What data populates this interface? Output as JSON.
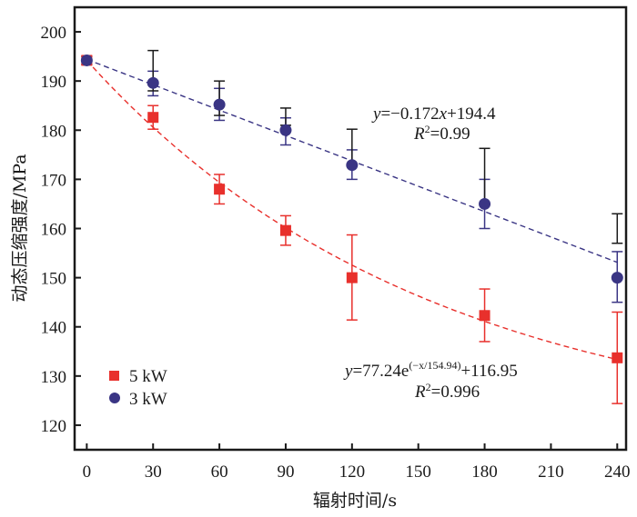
{
  "chart_data": {
    "type": "scatter",
    "title": "",
    "xlabel": "辐射时间/s",
    "ylabel": "动态压缩强度/MPa",
    "xlim": [
      -5.5,
      244
    ],
    "ylim": [
      115,
      205
    ],
    "xticks": [
      0,
      30,
      60,
      90,
      120,
      150,
      180,
      210,
      240
    ],
    "yticks": [
      120,
      130,
      140,
      150,
      160,
      170,
      180,
      190,
      200
    ],
    "grid": false,
    "legend": {
      "placement": "bottom-left",
      "entries": [
        "5 kW",
        "3 kW"
      ]
    },
    "series": [
      {
        "name": "5 kW",
        "marker": "square",
        "color": "#e8302c",
        "x": [
          0,
          30,
          60,
          90,
          120,
          180,
          240
        ],
        "y": [
          194.2,
          182.6,
          168.0,
          159.6,
          150.0,
          142.3,
          133.7
        ],
        "error_bars": [
          {
            "low": 193.4,
            "high": 195.0,
            "color": "#e8302c"
          },
          {
            "low": 180.2,
            "high": 185.0,
            "color": "#e8302c"
          },
          {
            "low": 165.0,
            "high": 171.0,
            "color": "#e8302c"
          },
          {
            "low": 156.6,
            "high": 162.6,
            "color": "#e8302c"
          },
          {
            "low": 141.4,
            "high": 158.7,
            "color": "#e8302c"
          },
          {
            "low": 137.0,
            "high": 147.7,
            "color": "#e8302c"
          },
          {
            "low": 124.4,
            "high": 143.0,
            "color": "#e8302c"
          }
        ],
        "fit": {
          "kind": "exponential",
          "a": 77.24,
          "tau": 154.94,
          "c": 116.95,
          "equation": "y=77.24e^(−x/154.94)+116.95",
          "r2": "0.996",
          "color": "#e8302c"
        }
      },
      {
        "name": "3 kW",
        "marker": "circle",
        "color": "#3a3584",
        "x": [
          0,
          30,
          60,
          90,
          120,
          180,
          240
        ],
        "y": [
          194.2,
          189.6,
          185.2,
          180.0,
          172.9,
          165.0,
          150.0
        ],
        "error_bars": [
          {
            "low": 193.4,
            "high": 195.0,
            "color": "#3a3584"
          },
          {
            "low": 187.0,
            "high": 192.0,
            "color": "#3a3584"
          },
          {
            "low": 182.0,
            "high": 188.5,
            "color": "#3a3584"
          },
          {
            "low": 177.0,
            "high": 182.5,
            "color": "#3a3584"
          },
          {
            "low": 170.0,
            "high": 176.0,
            "color": "#3a3584"
          },
          {
            "low": 160.0,
            "high": 170.0,
            "color": "#3a3584"
          },
          {
            "low": 145.0,
            "high": 155.3,
            "color": "#3a3584"
          }
        ],
        "secondary_error_bars": [
          {
            "low": 193.4,
            "high": 195.0,
            "color": "#1a1a1a"
          },
          {
            "low": 188.0,
            "high": 196.2,
            "color": "#1a1a1a"
          },
          {
            "low": 183.0,
            "high": 190.0,
            "color": "#1a1a1a"
          },
          {
            "low": 181.0,
            "high": 184.5,
            "color": "#1a1a1a"
          },
          {
            "low": 173.0,
            "high": 180.2,
            "color": "#1a1a1a"
          },
          {
            "low": 165.0,
            "high": 176.3,
            "color": "#1a1a1a"
          },
          {
            "low": 157.0,
            "high": 163.0,
            "color": "#1a1a1a"
          }
        ],
        "fit": {
          "kind": "linear",
          "slope": -0.172,
          "intercept": 194.4,
          "equation": "y=−0.172x+194.4",
          "r2": "0.99",
          "color": "#3a3584"
        }
      }
    ],
    "annotations": [
      {
        "series": "3 kW",
        "lines": [
          "y=−0.172x+194.4",
          "R²=0.99"
        ]
      },
      {
        "series": "5 kW",
        "lines": [
          "y=77.24e^(−x/154.94)+116.95",
          "R²=0.996"
        ]
      }
    ]
  },
  "text": {
    "xlabel": "辐射时间/s",
    "ylabel": "动态压缩强度/MPa",
    "legend_5kw": "5 kW",
    "legend_3kw": "3 kW",
    "lin_y": "y",
    "lin_rest": "=−0.172",
    "lin_x": "x",
    "lin_tail": "+194.4",
    "lin_r": "R",
    "lin_r_sup": "2",
    "lin_r_val": "=0.99",
    "exp_y": "y",
    "exp_head": "=77.24e",
    "exp_sup": "(−x/154.94)",
    "exp_tail": "+116.95",
    "exp_r": "R",
    "exp_r_sup": "2",
    "exp_r_val": "=0.996"
  }
}
